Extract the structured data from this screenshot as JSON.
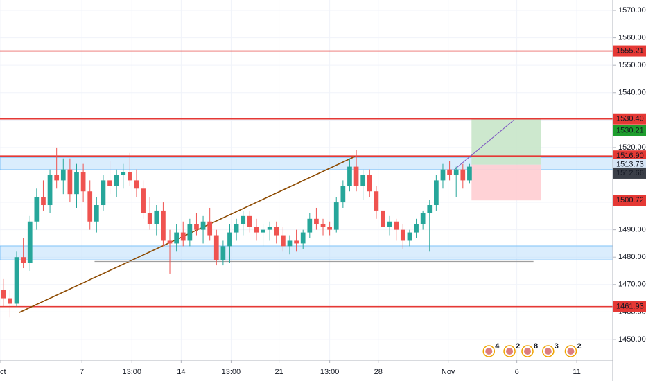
{
  "chart_data": {
    "type": "candlestick",
    "up_color": "#26a69a",
    "down_color": "#ef5350",
    "open": [
      1468,
      1465,
      1463,
      1480,
      1478,
      1493,
      1502,
      1499,
      1510,
      1508,
      1512,
      1503,
      1511,
      1504,
      1493,
      1499,
      1508,
      1506,
      1510,
      1511,
      1508,
      1505,
      1496,
      1492,
      1497,
      1486,
      1485,
      1489,
      1486,
      1492,
      1490,
      1493,
      1488,
      1479,
      1484,
      1489,
      1492,
      1495,
      1491,
      1489,
      1490,
      1491,
      1488,
      1484,
      1486,
      1485,
      1489,
      1494,
      1492,
      1491,
      1490,
      1500,
      1506,
      1513,
      1506,
      1510,
      1504,
      1497,
      1491,
      1493,
      1490,
      1486,
      1489,
      1492,
      1496,
      1499,
      1508,
      1512,
      1510,
      1512,
      1508
    ],
    "high": [
      1472,
      1468,
      1482,
      1487,
      1495,
      1505,
      1508,
      1512,
      1520,
      1516,
      1516,
      1514,
      1514,
      1508,
      1502,
      1510,
      1515,
      1512,
      1514,
      1518,
      1512,
      1508,
      1502,
      1499,
      1500,
      1490,
      1492,
      1493,
      1494,
      1496,
      1495,
      1498,
      1490,
      1486,
      1492,
      1494,
      1497,
      1497,
      1494,
      1492,
      1493,
      1493,
      1491,
      1488,
      1490,
      1490,
      1496,
      1498,
      1494,
      1493,
      1502,
      1508,
      1516,
      1519,
      1512,
      1512,
      1506,
      1499,
      1495,
      1494,
      1492,
      1490,
      1494,
      1497,
      1501,
      1510,
      1514,
      1515,
      1513,
      1514,
      1514
    ],
    "low": [
      1462,
      1458,
      1462,
      1476,
      1475,
      1490,
      1497,
      1496,
      1505,
      1503,
      1500,
      1498,
      1500,
      1490,
      1489,
      1497,
      1503,
      1502,
      1505,
      1506,
      1502,
      1494,
      1490,
      1488,
      1484,
      1474,
      1482,
      1484,
      1484,
      1488,
      1485,
      1486,
      1477,
      1477,
      1478,
      1486,
      1488,
      1489,
      1486,
      1484,
      1486,
      1485,
      1482,
      1481,
      1482,
      1483,
      1487,
      1490,
      1488,
      1488,
      1489,
      1498,
      1504,
      1504,
      1501,
      1502,
      1494,
      1490,
      1488,
      1486,
      1483,
      1484,
      1487,
      1490,
      1482,
      1497,
      1505,
      1508,
      1502,
      1505,
      1507
    ],
    "close": [
      1465,
      1463,
      1480,
      1478,
      1493,
      1502,
      1499,
      1510,
      1508,
      1512,
      1503,
      1511,
      1504,
      1493,
      1499,
      1508,
      1506,
      1510,
      1511,
      1508,
      1505,
      1496,
      1492,
      1497,
      1486,
      1485,
      1489,
      1486,
      1492,
      1490,
      1493,
      1488,
      1479,
      1484,
      1489,
      1492,
      1495,
      1491,
      1489,
      1490,
      1491,
      1488,
      1484,
      1486,
      1485,
      1489,
      1494,
      1492,
      1491,
      1490,
      1500,
      1506,
      1513,
      1506,
      1510,
      1504,
      1497,
      1491,
      1493,
      1490,
      1486,
      1489,
      1492,
      1496,
      1499,
      1508,
      1512,
      1510,
      1512,
      1508,
      1513
    ],
    "xlim": [
      0,
      92
    ],
    "xticks": [
      {
        "value": 0,
        "label": "Oct"
      },
      {
        "value": 12.3,
        "label": "7"
      },
      {
        "value": 19.8,
        "label": "13:00"
      },
      {
        "value": 27.2,
        "label": "14"
      },
      {
        "value": 34.7,
        "label": "13:00"
      },
      {
        "value": 41.9,
        "label": "21"
      },
      {
        "value": 49.5,
        "label": "13:00"
      },
      {
        "value": 56.8,
        "label": "28"
      },
      {
        "value": 67.3,
        "label": "Nov"
      },
      {
        "value": 77.6,
        "label": "6"
      },
      {
        "value": 86.6,
        "label": "11"
      }
    ],
    "ylim": [
      1442.4,
      1573.8
    ],
    "yticks": [
      {
        "value": 1450,
        "label": "1450.00"
      },
      {
        "value": 1460,
        "label": "1460.00"
      },
      {
        "value": 1470,
        "label": "1470.00"
      },
      {
        "value": 1480,
        "label": "1480.00"
      },
      {
        "value": 1490,
        "label": "1490.00"
      },
      {
        "value": 1500,
        "label": "1500.00"
      },
      {
        "value": 1510,
        "label": "1510.00"
      },
      {
        "value": 1520,
        "label": "1520.00"
      },
      {
        "value": 1530,
        "label": "1530.00"
      },
      {
        "value": 1540,
        "label": "1540.00"
      },
      {
        "value": 1550,
        "label": "1550.00"
      },
      {
        "value": 1560,
        "label": "1560.00"
      },
      {
        "value": 1570,
        "label": "1570.00"
      }
    ],
    "grid": true,
    "levels": [
      {
        "value": 1555.21,
        "label": "1555.21"
      },
      {
        "value": 1530.4,
        "label": "1530.40"
      },
      {
        "value": 1516.9,
        "label": "1516.90"
      },
      {
        "value": 1461.93,
        "label": "1461.93"
      }
    ],
    "level_color": "#e53935",
    "zones": [
      {
        "from": 1511.9,
        "to": 1516.4
      },
      {
        "from": 1479,
        "to": 1484.1
      }
    ],
    "zone_color": "#bbdefb",
    "position": {
      "x0": 70.8,
      "x1": 81.2,
      "entry": {
        "value": 1513.73,
        "label": "1513.73"
      },
      "stop": 1500.72,
      "stop_label": "1500.72",
      "target_label": "1530.21",
      "current": 1512.66
    },
    "trendline": {
      "x": [
        2.9,
        53.3
      ],
      "y": [
        1459.8,
        1516.7
      ],
      "color": "#8d4a00"
    },
    "ray": {
      "x": [
        14.2,
        80.1
      ],
      "y": [
        1478.4,
        1478.4
      ],
      "color": "#9e9e9e"
    },
    "projection": {
      "x": [
        68.2,
        77.2
      ],
      "y": [
        1511.9,
        1530.1
      ],
      "color": "#7e57c2"
    },
    "events": [
      {
        "x": 73.4,
        "label": "4"
      },
      {
        "x": 76.5,
        "label": "2"
      },
      {
        "x": 79.2,
        "label": "8"
      },
      {
        "x": 82.3,
        "label": "3"
      },
      {
        "x": 85.7,
        "label": "2"
      }
    ]
  }
}
